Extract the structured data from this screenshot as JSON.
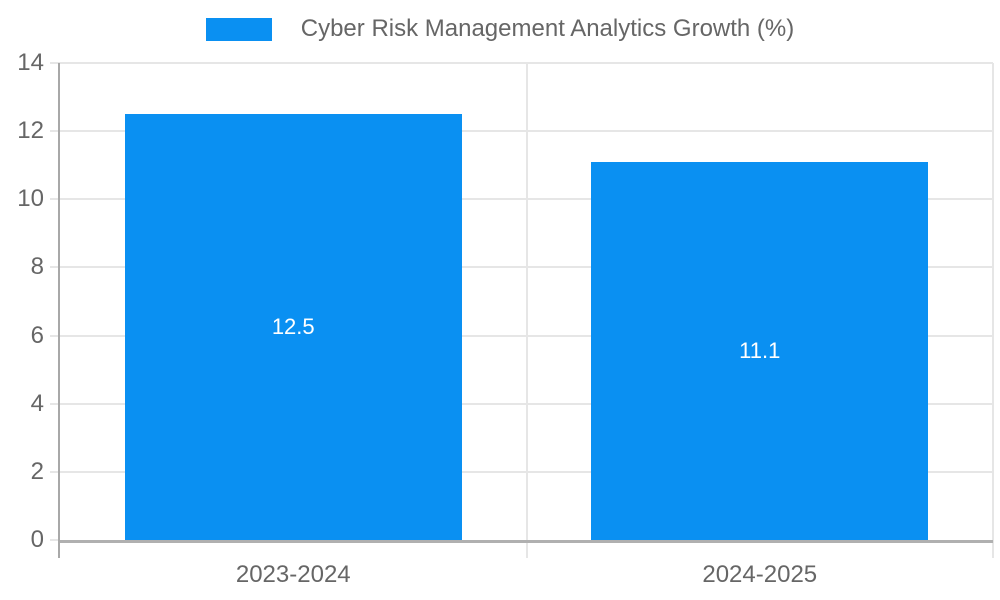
{
  "chart_data": {
    "type": "bar",
    "legend": {
      "label": "Cyber Risk Management Analytics Growth (%)",
      "position": "top"
    },
    "categories": [
      "2023-2024",
      "2024-2025"
    ],
    "values": [
      12.5,
      11.1
    ],
    "bar_labels": [
      "12.5",
      "11.1"
    ],
    "ylim": [
      0,
      14
    ],
    "ytick_step": 2,
    "yticks": [
      0,
      2,
      4,
      6,
      8,
      10,
      12,
      14
    ],
    "grid": "on",
    "colors": {
      "bar": "#0a90f2",
      "bar_label_text": "#ffffff",
      "tick_text": "#666666",
      "legend_text": "#666666",
      "gridline": "#e6e6e6",
      "axis_line_x": "#b0b0b0",
      "axis_line_y": "#a8a8a8"
    }
  }
}
